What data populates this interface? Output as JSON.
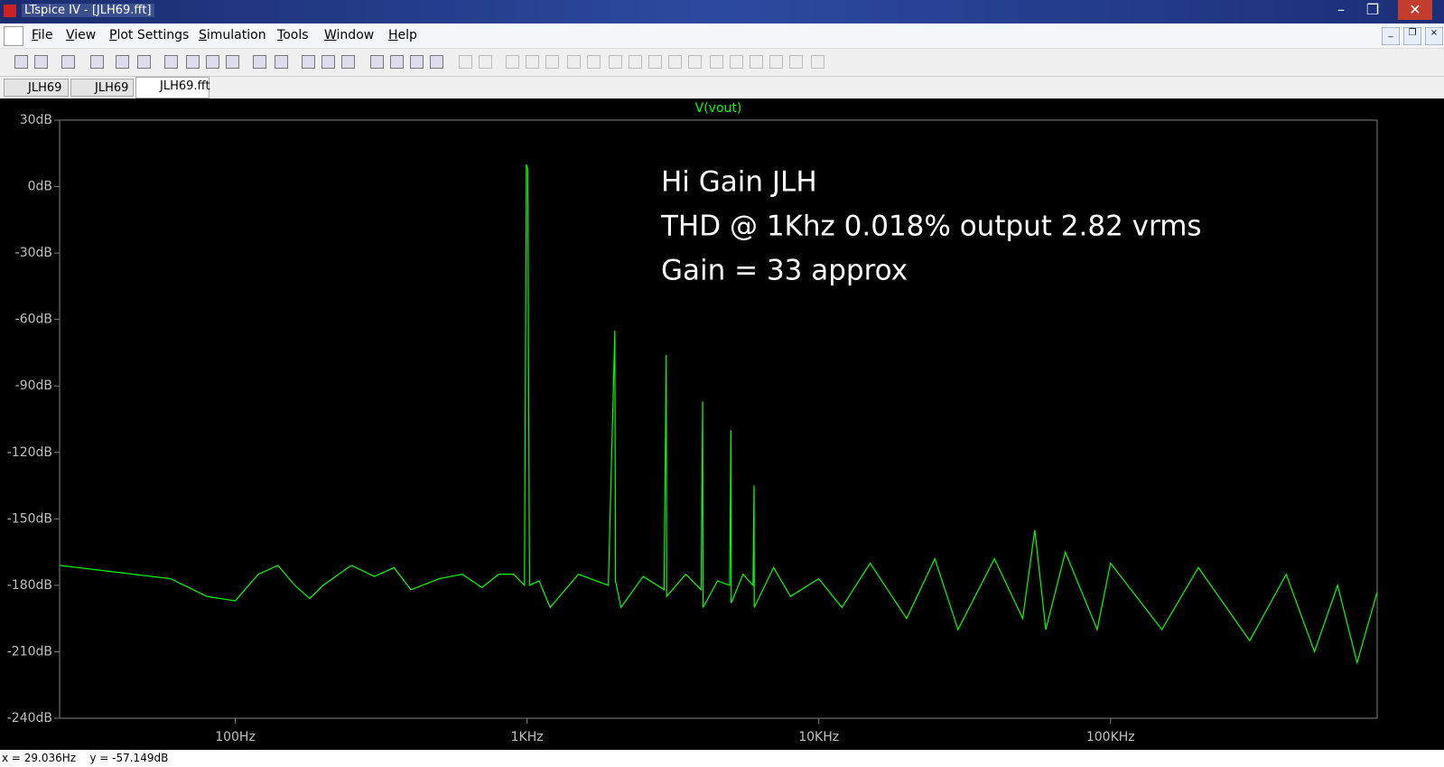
{
  "window": {
    "title": "LTspice IV - [JLH69.fft]"
  },
  "menu": [
    "File",
    "View",
    "Plot Settings",
    "Simulation",
    "Tools",
    "Window",
    "Help"
  ],
  "tabs": [
    "JLH69",
    "JLH69",
    "JLH69.fft"
  ],
  "chart_data": {
    "type": "line",
    "xscale": "log",
    "x": [
      25,
      60,
      80,
      100,
      120,
      140,
      160,
      180,
      200,
      250,
      300,
      350,
      400,
      500,
      600,
      700,
      800,
      900,
      980,
      995,
      1005,
      1020,
      1100,
      1200,
      1500,
      1900,
      2000,
      2010,
      2100,
      2500,
      2950,
      3000,
      3010,
      3500,
      3950,
      4000,
      4010,
      4500,
      4950,
      5000,
      5010,
      5500,
      5950,
      6000,
      6010,
      7000,
      8000,
      10000,
      12000,
      15000,
      20000,
      25000,
      30000,
      40000,
      50000,
      55000,
      60000,
      70000,
      90000,
      100000,
      150000,
      200000,
      300000,
      400000,
      500000,
      600000,
      700000,
      820000
    ],
    "series": [
      {
        "name": "V(vout)",
        "color": "#00ff00",
        "values": [
          -171,
          -177,
          -185,
          -187,
          -175,
          -171,
          -180,
          -186,
          -180,
          -171,
          -176,
          -172,
          -182,
          -177,
          -175,
          -181,
          -175,
          -175,
          -180,
          10,
          8,
          -180,
          -178,
          -190,
          -175,
          -180,
          -65,
          -178,
          -190,
          -176,
          -182,
          -76,
          -185,
          -175,
          -182,
          -97,
          -190,
          -178,
          -180,
          -110,
          -188,
          -175,
          -180,
          -135,
          -190,
          -172,
          -185,
          -177,
          -190,
          -170,
          -195,
          -168,
          -200,
          -168,
          -195,
          -155,
          -200,
          -165,
          -200,
          -170,
          -200,
          -172,
          -205,
          -175,
          -210,
          -180,
          -215,
          -183
        ]
      }
    ],
    "xlim": [
      25,
      820000
    ],
    "ylim": [
      -240,
      30
    ],
    "xticks": [
      {
        "value": 100,
        "label": "100Hz"
      },
      {
        "value": 1000,
        "label": "1KHz"
      },
      {
        "value": 10000,
        "label": "10KHz"
      },
      {
        "value": 100000,
        "label": "100KHz"
      }
    ],
    "yticks": [
      {
        "value": 30,
        "label": "30dB"
      },
      {
        "value": 0,
        "label": "0dB"
      },
      {
        "value": -30,
        "label": "-30dB"
      },
      {
        "value": -60,
        "label": "-60dB"
      },
      {
        "value": -90,
        "label": "-90dB"
      },
      {
        "value": -120,
        "label": "-120dB"
      },
      {
        "value": -150,
        "label": "-150dB"
      },
      {
        "value": -180,
        "label": "-180dB"
      },
      {
        "value": -210,
        "label": "-210dB"
      },
      {
        "value": -240,
        "label": "-240dB"
      }
    ],
    "annotations": [
      "Hi Gain JLH",
      "THD @ 1Khz 0.018% output 2.82 vrms",
      "Gain = 33 approx"
    ]
  },
  "status": "x = 29.036Hz    y = -57.149dB"
}
